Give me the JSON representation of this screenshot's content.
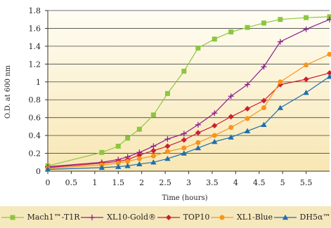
{
  "chart_data": {
    "type": "line",
    "title": "",
    "xlabel": "Time (hours)",
    "ylabel": "O.D. at 600 nm",
    "xlim": [
      0,
      6
    ],
    "ylim": [
      0,
      1.8
    ],
    "x_ticks": [
      "0",
      "0.5",
      "1",
      "1.5",
      "2",
      "2.5",
      "3",
      "3.5",
      "4",
      "4.5",
      "5",
      "5.5"
    ],
    "y_ticks": [
      "0",
      "0.2",
      "0.4",
      "0.6",
      "0.8",
      "1",
      "1.2",
      "1.4",
      "1.6",
      "1.8"
    ],
    "grid": "horizontal",
    "legend_position": "bottom",
    "series": [
      {
        "name": "Mach1™-T1R",
        "color": "#8cc63f",
        "marker": "square",
        "x": [
          0,
          1.15,
          1.5,
          1.7,
          1.95,
          2.25,
          2.55,
          2.9,
          3.2,
          3.55,
          3.9,
          4.25,
          4.6,
          4.95,
          5.5,
          6.0
        ],
        "y": [
          0.06,
          0.21,
          0.28,
          0.37,
          0.47,
          0.63,
          0.87,
          1.12,
          1.38,
          1.48,
          1.56,
          1.61,
          1.66,
          1.7,
          1.72,
          1.73
        ]
      },
      {
        "name": "XL10-Gold®",
        "color": "#8e1e8c",
        "marker": "plus",
        "x": [
          0,
          1.15,
          1.5,
          1.7,
          1.95,
          2.25,
          2.55,
          2.9,
          3.2,
          3.55,
          3.9,
          4.25,
          4.6,
          4.95,
          5.5,
          6.0
        ],
        "y": [
          0.05,
          0.1,
          0.13,
          0.16,
          0.21,
          0.28,
          0.36,
          0.42,
          0.52,
          0.65,
          0.84,
          0.97,
          1.17,
          1.45,
          1.59,
          1.7
        ]
      },
      {
        "name": "TOP10",
        "color": "#cc1f2d",
        "marker": "diamond",
        "x": [
          0,
          1.15,
          1.5,
          1.7,
          1.95,
          2.25,
          2.55,
          2.9,
          3.2,
          3.55,
          3.9,
          4.25,
          4.6,
          4.95,
          5.5,
          6.0
        ],
        "y": [
          0.04,
          0.09,
          0.11,
          0.13,
          0.18,
          0.23,
          0.28,
          0.35,
          0.43,
          0.51,
          0.61,
          0.7,
          0.79,
          0.97,
          1.03,
          1.1
        ]
      },
      {
        "name": "XL1-Blue",
        "color": "#f7941d",
        "marker": "circle",
        "x": [
          0,
          1.15,
          1.5,
          1.7,
          1.95,
          2.25,
          2.55,
          2.9,
          3.2,
          3.55,
          3.9,
          4.25,
          4.6,
          4.95,
          5.5,
          6.0
        ],
        "y": [
          0.03,
          0.07,
          0.09,
          0.11,
          0.14,
          0.17,
          0.22,
          0.26,
          0.32,
          0.4,
          0.49,
          0.59,
          0.71,
          1.0,
          1.19,
          1.31
        ]
      },
      {
        "name": "DH5α™",
        "color": "#1f6fad",
        "marker": "triangle",
        "x": [
          0,
          1.15,
          1.5,
          1.7,
          1.95,
          2.25,
          2.55,
          2.9,
          3.2,
          3.55,
          3.9,
          4.25,
          4.6,
          4.95,
          5.5,
          6.0
        ],
        "y": [
          0.02,
          0.04,
          0.05,
          0.06,
          0.08,
          0.1,
          0.14,
          0.2,
          0.26,
          0.33,
          0.38,
          0.45,
          0.52,
          0.71,
          0.88,
          1.06
        ]
      }
    ]
  }
}
